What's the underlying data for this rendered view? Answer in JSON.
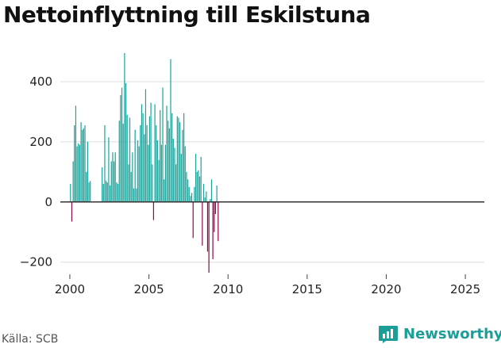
{
  "title": "Nettoinflyttning till Eskilstuna",
  "source": "Källa: SCB",
  "brand": {
    "name": "Newsworthy",
    "logo_icon": "newsworthy-chart-icon",
    "color": "#1b9e98"
  },
  "colors": {
    "positive": "#1aa39a",
    "negative": "#8b0a4a",
    "grid": "#dddddd",
    "zero_line": "#333333"
  },
  "chart_data": {
    "type": "bar",
    "title": "Nettoinflyttning till Eskilstuna",
    "xlabel": "",
    "ylabel": "",
    "x_ticks": [
      2000,
      2005,
      2010,
      2015,
      2020,
      2025
    ],
    "y_ticks": [
      -200,
      0,
      200,
      400
    ],
    "y_tick_labels": [
      "−200",
      "0",
      "200",
      "400"
    ],
    "ylim": [
      -235,
      500
    ],
    "xlim": [
      1999.4,
      2026.2
    ],
    "grid": true,
    "start": "2000-01",
    "frequency": "monthly",
    "gaps": [
      "2001-05..2001-12"
    ],
    "values": [
      60,
      -65,
      135,
      255,
      320,
      185,
      195,
      190,
      265,
      240,
      245,
      255,
      100,
      200,
      65,
      70,
      115,
      60,
      255,
      70,
      65,
      215,
      55,
      135,
      165,
      135,
      165,
      65,
      60,
      270,
      355,
      380,
      260,
      495,
      395,
      290,
      125,
      280,
      100,
      165,
      45,
      240,
      45,
      205,
      185,
      255,
      325,
      295,
      225,
      375,
      255,
      190,
      285,
      330,
      125,
      -60,
      325,
      255,
      205,
      140,
      305,
      190,
      380,
      75,
      190,
      320,
      270,
      245,
      475,
      295,
      210,
      180,
      125,
      285,
      280,
      265,
      160,
      240,
      295,
      185,
      100,
      75,
      50,
      20,
      30,
      -120,
      50,
      160,
      100,
      105,
      85,
      150,
      -145,
      60,
      15,
      35,
      -165,
      -235,
      10,
      75,
      -190,
      -100,
      -40,
      55,
      -130
    ]
  }
}
